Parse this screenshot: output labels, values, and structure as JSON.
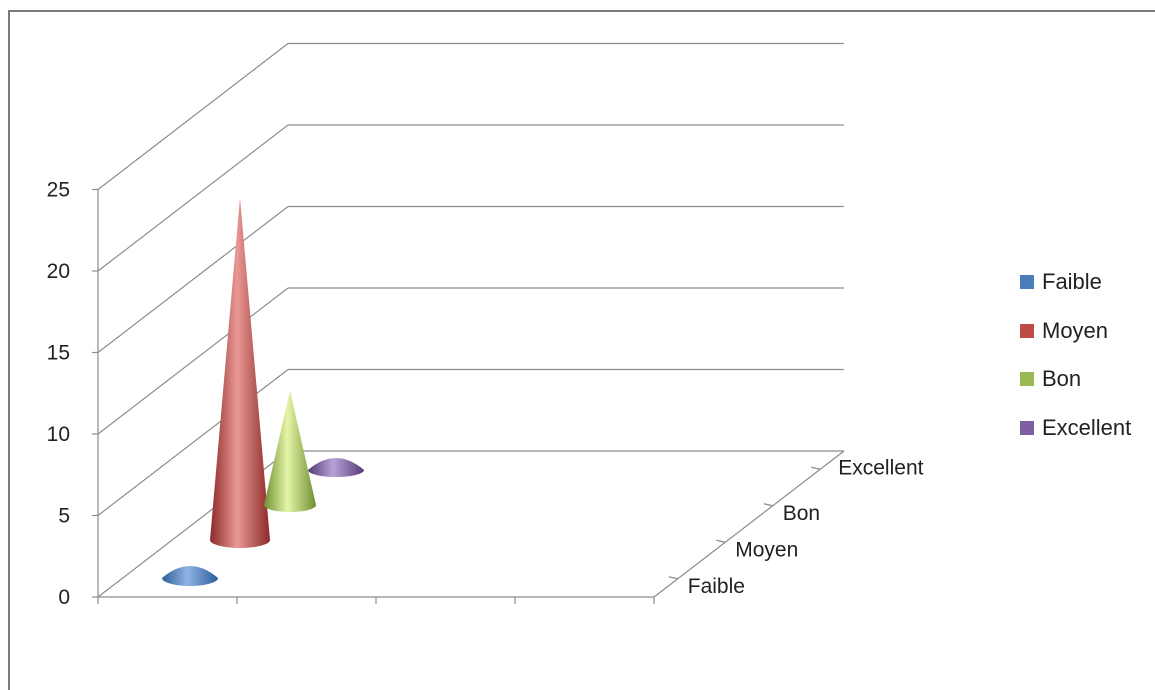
{
  "chart_data": {
    "type": "bar",
    "style": "3d-cone",
    "categories": [
      "Faible",
      "Moyen",
      "Bon",
      "Excellent"
    ],
    "series": [
      {
        "name": "Faible",
        "values": [
          0.3,
          0,
          0,
          0
        ],
        "color": "#4a7ebb"
      },
      {
        "name": "Moyen",
        "values": [
          0,
          21,
          0,
          0
        ],
        "color": "#be4b48"
      },
      {
        "name": "Bon",
        "values": [
          0,
          0,
          7,
          0
        ],
        "color": "#98b954"
      },
      {
        "name": "Excellent",
        "values": [
          0,
          0,
          0,
          0.3
        ],
        "color": "#7d60a0"
      }
    ],
    "y_ticks": [
      "0",
      "5",
      "10",
      "15",
      "20",
      "25"
    ],
    "depth_labels": [
      "Faible",
      "Moyen",
      "Bon",
      "Excellent"
    ],
    "ylim": [
      0,
      25
    ],
    "grid": true,
    "legend_position": "right"
  }
}
